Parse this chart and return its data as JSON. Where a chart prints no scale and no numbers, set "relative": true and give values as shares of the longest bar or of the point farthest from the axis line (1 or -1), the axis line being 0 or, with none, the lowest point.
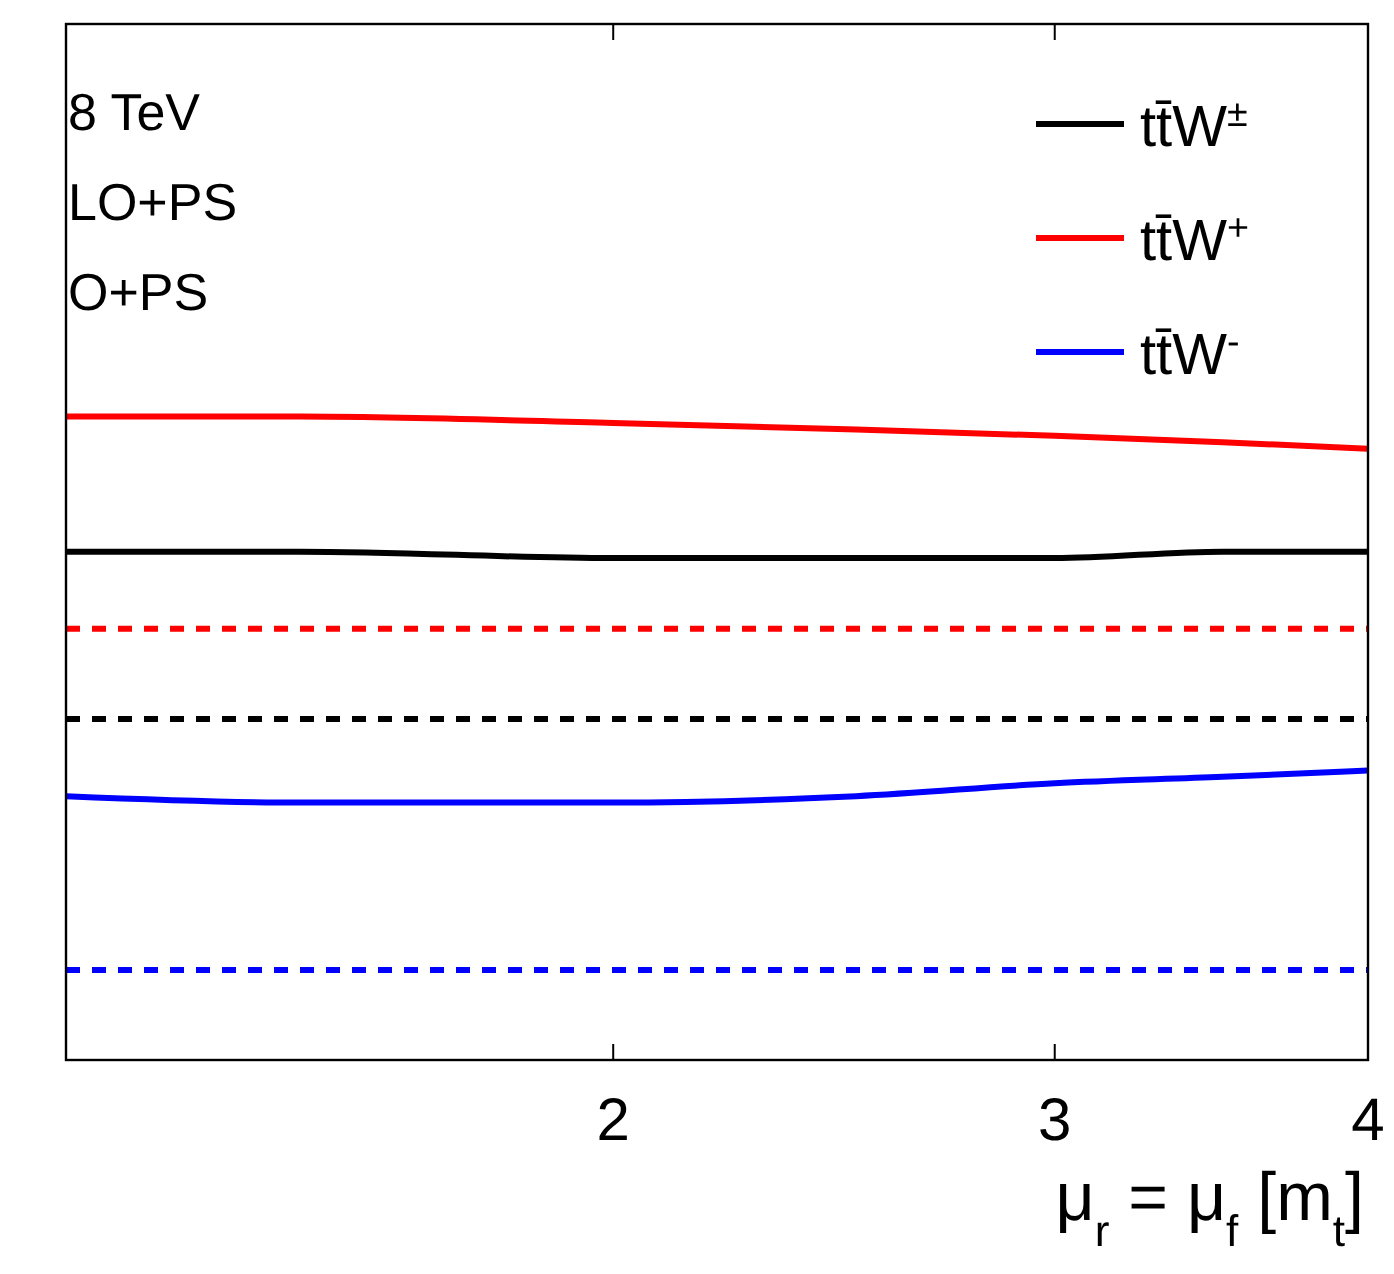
{
  "chart_data": {
    "type": "line",
    "relative": true,
    "xlabel": "μ$_{r}$ = μ$_{f}$ [m$_{t}$]",
    "log": "x",
    "xlim": [
      1.21,
      4
    ],
    "xticks": [
      2,
      3,
      4
    ],
    "legend": "top right",
    "grid": false,
    "annotations": [
      "8 TeV",
      "LO+PS",
      "O+PS"
    ],
    "series": [
      {
        "name": "tt̄W$^{±}$",
        "color": "#000000",
        "x": [
          1.21,
          1.5,
          2,
          2.5,
          3,
          3.5,
          4
        ],
        "values": [
          0.79,
          0.79,
          0.78,
          0.78,
          0.78,
          0.79,
          0.79
        ],
        "line_style": "solid"
      },
      {
        "name": "tt̄W$^{+}$",
        "color": "#ff0000",
        "x": [
          1.21,
          1.5,
          2,
          2.5,
          3,
          3.5,
          4
        ],
        "values": [
          1.0,
          1.0,
          0.99,
          0.98,
          0.97,
          0.96,
          0.95
        ],
        "line_style": "solid"
      },
      {
        "name": "tt̄W$^{-}$",
        "color": "#0000ff",
        "x": [
          1.21,
          1.5,
          2,
          2.5,
          3,
          3.5,
          4
        ],
        "values": [
          0.41,
          0.4,
          0.4,
          0.41,
          0.43,
          0.44,
          0.45
        ],
        "line_style": "solid"
      },
      {
        "color": "#ff0000",
        "x": [
          1.21,
          4
        ],
        "values": [
          0.67,
          0.67
        ],
        "line_style": "dashed"
      },
      {
        "color": "#000000",
        "x": [
          1.21,
          4
        ],
        "values": [
          0.53,
          0.53
        ],
        "line_style": "dashed"
      },
      {
        "color": "#0000ff",
        "x": [
          1.21,
          4
        ],
        "values": [
          0.14,
          0.14
        ],
        "line_style": "dashed"
      }
    ]
  }
}
